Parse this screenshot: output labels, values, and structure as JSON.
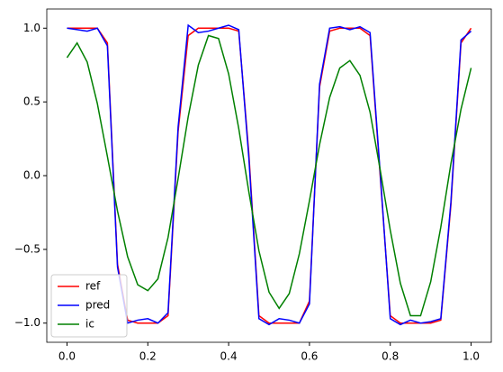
{
  "chart_data": {
    "type": "line",
    "x": [
      0,
      0.025,
      0.05,
      0.075,
      0.1,
      0.125,
      0.15,
      0.175,
      0.2,
      0.225,
      0.25,
      0.275,
      0.3,
      0.325,
      0.35,
      0.375,
      0.4,
      0.425,
      0.45,
      0.475,
      0.5,
      0.525,
      0.55,
      0.575,
      0.6,
      0.625,
      0.65,
      0.675,
      0.7,
      0.725,
      0.75,
      0.775,
      0.8,
      0.825,
      0.85,
      0.875,
      0.9,
      0.925,
      0.95,
      0.975,
      1.0
    ],
    "series": [
      {
        "name": "ref",
        "color": "#ff0000",
        "values": [
          1,
          1,
          1,
          1,
          0.9,
          -0.6,
          -0.98,
          -1,
          -1,
          -1,
          -0.95,
          0.3,
          0.95,
          1,
          1,
          1,
          1,
          0.98,
          0.15,
          -0.95,
          -1,
          -1,
          -1,
          -1,
          -0.85,
          0.6,
          0.98,
          1,
          1,
          1,
          0.95,
          0.0,
          -0.95,
          -1,
          -1,
          -1,
          -1,
          -0.98,
          -0.2,
          0.9,
          1
        ]
      },
      {
        "name": "pred",
        "color": "#0000ff",
        "values": [
          1,
          0.99,
          0.98,
          1,
          0.88,
          -0.62,
          -1.0,
          -0.98,
          -0.97,
          -1.0,
          -0.93,
          0.33,
          1.02,
          0.97,
          0.98,
          1.0,
          1.02,
          0.99,
          0.12,
          -0.97,
          -1.01,
          -0.97,
          -0.98,
          -1.0,
          -0.87,
          0.62,
          1.0,
          1.01,
          0.99,
          1.01,
          0.97,
          0.02,
          -0.97,
          -1.01,
          -0.98,
          -1.0,
          -0.99,
          -0.97,
          -0.18,
          0.92,
          0.98
        ]
      },
      {
        "name": "ic",
        "color": "#008000",
        "values": [
          0.8,
          0.9,
          0.77,
          0.49,
          0.13,
          -0.24,
          -0.55,
          -0.74,
          -0.78,
          -0.7,
          -0.42,
          -0.02,
          0.4,
          0.75,
          0.95,
          0.93,
          0.69,
          0.32,
          -0.11,
          -0.51,
          -0.79,
          -0.9,
          -0.8,
          -0.53,
          -0.17,
          0.21,
          0.53,
          0.73,
          0.78,
          0.68,
          0.43,
          0.04,
          -0.37,
          -0.73,
          -0.95,
          -0.95,
          -0.72,
          -0.35,
          0.08,
          0.45,
          0.73
        ]
      }
    ],
    "xlim": [
      -0.05,
      1.05
    ],
    "ylim": [
      -1.13,
      1.13
    ],
    "xticks": [
      {
        "value": 0,
        "label": "0.0"
      },
      {
        "value": 0.2,
        "label": "0.2"
      },
      {
        "value": 0.4,
        "label": "0.4"
      },
      {
        "value": 0.6,
        "label": "0.6"
      },
      {
        "value": 0.8,
        "label": "0.8"
      },
      {
        "value": 1,
        "label": "1.0"
      }
    ],
    "yticks": [
      {
        "value": -1,
        "label": "−1.0"
      },
      {
        "value": -0.5,
        "label": "−0.5"
      },
      {
        "value": 0,
        "label": "0.0"
      },
      {
        "value": 0.5,
        "label": "0.5"
      },
      {
        "value": 1,
        "label": "1.0"
      }
    ],
    "legend": "lower left"
  }
}
